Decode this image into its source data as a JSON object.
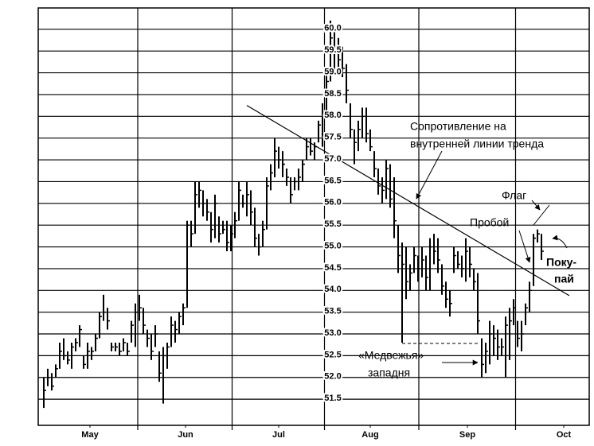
{
  "chart_data": {
    "type": "ohlc",
    "annotations": [
      "Сопротивление на",
      "внутренней линии тренда",
      "Флаг",
      "Пробой",
      "Поку-",
      "пай",
      "«Медвежья»",
      "западня"
    ],
    "xlim": [
      -1.4,
      137
    ],
    "xticks": [
      {
        "value": 11.6,
        "label": "May"
      },
      {
        "value": 35.6,
        "label": "Jun"
      },
      {
        "value": 59,
        "label": "Jul"
      },
      {
        "value": 82,
        "label": "Aug"
      },
      {
        "value": 106.4,
        "label": "Sep"
      },
      {
        "value": 130.6,
        "label": "Oct"
      }
    ],
    "ylim": [
      50.9,
      60.49
    ],
    "yticks": [
      {
        "value": 60,
        "label": "60.0"
      },
      59.5,
      {
        "value": 59,
        "label": "59.0"
      },
      58.5,
      {
        "value": 58,
        "label": "58.0"
      },
      57.5,
      {
        "value": 57,
        "label": "57.0"
      },
      56.5,
      {
        "value": 56,
        "label": "56.0"
      },
      55.5,
      {
        "value": 55,
        "label": "55.0"
      },
      54.5,
      {
        "value": 54,
        "label": "54.0"
      },
      53.5,
      {
        "value": 53,
        "label": "53.0"
      },
      52.5,
      {
        "value": 52,
        "label": "52.0"
      },
      51.5
    ],
    "grid": true,
    "color": "#000000",
    "trendline": {
      "x": [
        51,
        132
      ],
      "y": [
        58.25,
        53.88
      ]
    },
    "x": [
      0,
      1,
      2,
      3,
      4,
      5,
      6,
      7,
      8,
      9,
      10,
      11,
      12,
      13,
      14,
      15,
      16,
      17,
      18,
      19,
      20,
      21,
      22,
      23,
      24,
      25,
      26,
      27,
      28,
      29,
      30,
      31,
      32,
      33,
      34,
      35,
      36,
      37,
      38,
      39,
      40,
      41,
      42,
      43,
      44,
      45,
      46,
      47,
      48,
      49,
      50,
      51,
      52,
      53,
      54,
      55,
      56,
      57,
      58,
      59,
      60,
      61,
      62,
      63,
      64,
      65,
      66,
      67,
      68,
      69,
      70,
      71,
      72,
      73,
      74,
      75,
      76,
      77,
      78,
      79,
      80,
      81,
      82,
      83,
      84,
      85,
      86,
      87,
      88,
      89,
      90,
      91,
      92,
      93,
      94,
      95,
      96,
      97,
      98,
      99,
      100,
      101,
      102,
      103,
      104,
      105,
      106,
      107,
      108,
      109,
      110,
      111,
      112,
      113,
      114,
      115,
      116,
      117,
      118,
      119,
      120,
      121,
      122,
      123,
      124,
      125
    ],
    "high": [
      52.0,
      52.2,
      52.1,
      52.3,
      52.8,
      52.9,
      52.6,
      52.8,
      52.9,
      53.2,
      52.5,
      52.8,
      52.7,
      53.0,
      53.5,
      53.9,
      53.6,
      52.8,
      52.8,
      52.8,
      52.9,
      52.8,
      53.3,
      53.7,
      53.9,
      53.6,
      53.1,
      53.0,
      53.2,
      52.6,
      52.7,
      52.8,
      53.4,
      53.3,
      53.5,
      53.7,
      55.6,
      55.6,
      56.5,
      56.5,
      56.3,
      56.1,
      55.8,
      56.2,
      55.7,
      55.6,
      55.6,
      55.5,
      55.8,
      56.5,
      56.2,
      56.5,
      56.3,
      55.9,
      55.3,
      55.6,
      56.6,
      56.9,
      57.5,
      57.3,
      57.2,
      56.8,
      56.6,
      56.6,
      56.8,
      57.0,
      57.5,
      57.5,
      57.4,
      57.9,
      58.3,
      59.0,
      60.2,
      60.0,
      59.8,
      59.6,
      59.2,
      58.3,
      57.7,
      57.9,
      58.2,
      58.2,
      57.7,
      57.2,
      56.8,
      56.6,
      57.0,
      56.9,
      56.6,
      55.5,
      55.1,
      55.0,
      54.6,
      55.0,
      54.8,
      55.0,
      54.8,
      55.2,
      55.3,
      55.2,
      54.6,
      54.2,
      54.0,
      55.0,
      54.9,
      54.8,
      55.2,
      55.0,
      54.5,
      54.4,
      52.9,
      52.8,
      53.3,
      53.2,
      53.1,
      52.9,
      53.4,
      53.6,
      53.8,
      53.3,
      53.3,
      53.7,
      54.2,
      55.3,
      55.4,
      55.3
    ],
    "low": [
      51.3,
      51.8,
      51.7,
      52.0,
      52.2,
      52.4,
      52.3,
      52.2,
      52.6,
      52.7,
      52.2,
      52.2,
      52.4,
      52.6,
      52.9,
      53.3,
      53.1,
      52.6,
      52.6,
      52.5,
      52.6,
      52.5,
      52.8,
      52.7,
      53.3,
      53.0,
      52.7,
      52.4,
      52.7,
      51.9,
      51.4,
      52.2,
      52.7,
      52.8,
      53.0,
      53.2,
      53.6,
      55.0,
      55.3,
      55.9,
      55.7,
      55.6,
      55.1,
      55.2,
      55.1,
      55.3,
      54.9,
      54.9,
      55.2,
      55.6,
      55.9,
      55.7,
      55.5,
      55.0,
      54.8,
      55.0,
      55.4,
      56.3,
      56.6,
      56.8,
      56.6,
      56.4,
      56.0,
      56.3,
      56.3,
      56.5,
      57.0,
      57.1,
      57.0,
      57.4,
      57.3,
      58.0,
      58.8,
      59.0,
      59.1,
      58.9,
      58.3,
      57.5,
      56.9,
      57.2,
      57.5,
      57.4,
      57.2,
      56.6,
      56.2,
      56.0,
      56.1,
      55.9,
      55.2,
      54.4,
      52.8,
      53.8,
      54.0,
      54.4,
      54.2,
      54.3,
      54.0,
      54.0,
      54.6,
      54.4,
      53.9,
      53.6,
      53.4,
      54.4,
      54.5,
      54.3,
      54.2,
      54.3,
      54.0,
      53.0,
      52.0,
      52.1,
      52.3,
      52.5,
      52.4,
      52.5,
      52.0,
      52.4,
      53.2,
      52.7,
      52.6,
      53.2,
      53.5,
      54.1,
      55.1,
      54.7
    ],
    "close": [
      51.7,
      52.0,
      51.8,
      52.2,
      52.6,
      52.5,
      52.4,
      52.7,
      52.8,
      53.1,
      52.3,
      52.6,
      52.6,
      52.9,
      53.4,
      53.5,
      53.3,
      52.7,
      52.7,
      52.6,
      52.8,
      52.6,
      53.2,
      53.5,
      53.6,
      53.2,
      52.9,
      52.6,
      53.0,
      52.1,
      52.5,
      52.7,
      53.2,
      53.1,
      53.4,
      53.6,
      55.5,
      55.3,
      56.2,
      56.3,
      56.0,
      55.8,
      55.4,
      56.0,
      55.3,
      55.4,
      55.1,
      55.3,
      55.6,
      56.3,
      56.0,
      56.2,
      55.8,
      55.2,
      55.0,
      55.4,
      56.4,
      56.7,
      57.2,
      57.0,
      56.9,
      56.6,
      56.2,
      56.5,
      56.6,
      56.9,
      57.3,
      57.2,
      57.3,
      57.8,
      58.1,
      58.8,
      59.8,
      59.5,
      59.3,
      59.1,
      58.6,
      57.7,
      57.4,
      57.7,
      58.0,
      57.6,
      57.3,
      56.8,
      56.4,
      56.3,
      56.8,
      56.1,
      55.6,
      54.8,
      54.6,
      54.2,
      54.4,
      54.8,
      54.5,
      54.7,
      54.3,
      55.0,
      54.9,
      54.7,
      54.1,
      53.8,
      53.7,
      54.8,
      54.6,
      54.5,
      54.9,
      54.6,
      54.2,
      53.3,
      52.3,
      52.6,
      53.0,
      52.9,
      52.7,
      52.7,
      53.2,
      53.3,
      53.6,
      52.9,
      53.0,
      53.6,
      54.0,
      55.2,
      55.3,
      54.9
    ]
  }
}
